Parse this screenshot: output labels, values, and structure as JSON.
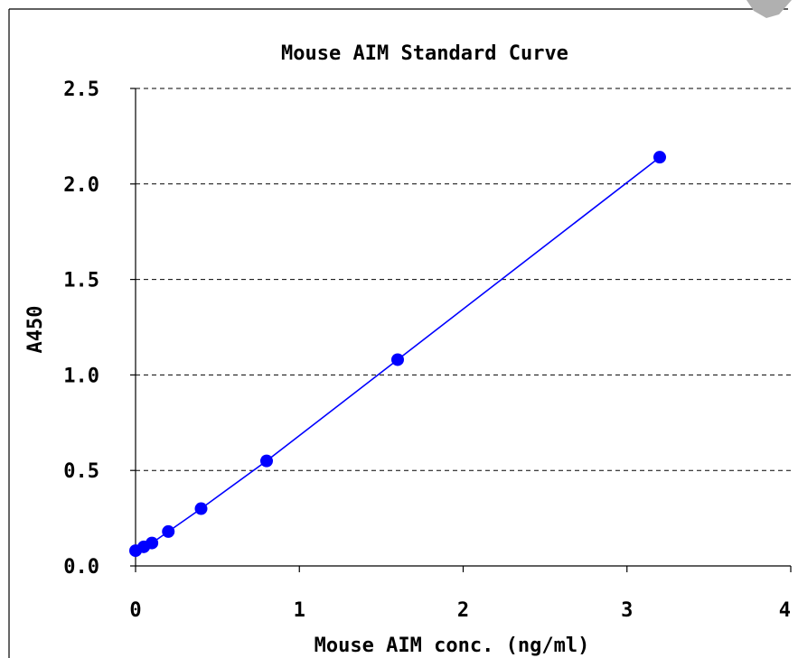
{
  "chart_data": {
    "type": "line",
    "title": "Mouse AIM Standard Curve",
    "xlabel": "Mouse AIM conc. (ng/ml)",
    "ylabel": "A450",
    "xlim": [
      0,
      4
    ],
    "ylim": [
      0,
      2.5
    ],
    "x_ticks": [
      "0",
      "1",
      "2",
      "3",
      "4"
    ],
    "y_ticks": [
      "0.0",
      "0.5",
      "1.0",
      "1.5",
      "2.0",
      "2.5"
    ],
    "grid": "horizontal dashed",
    "series": [
      {
        "x": [
          0,
          0.05,
          0.1,
          0.2,
          0.4,
          0.8,
          1.6,
          3.2
        ],
        "y": [
          0.08,
          0.1,
          0.12,
          0.18,
          0.3,
          0.55,
          1.08,
          2.14
        ],
        "color": "#0000ff"
      }
    ]
  }
}
